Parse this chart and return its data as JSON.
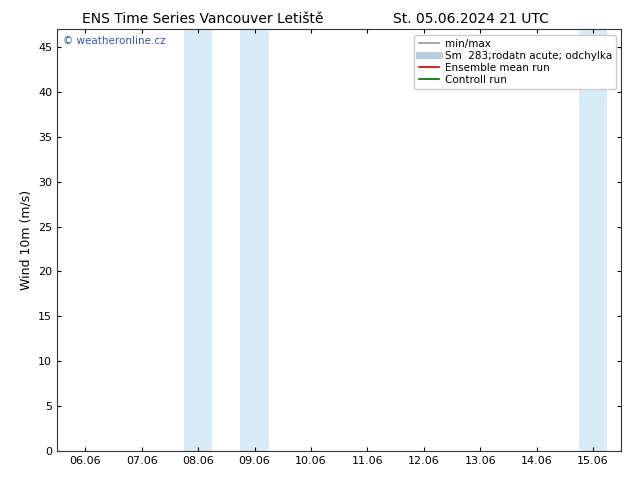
{
  "title_left": "ENS Time Series Vancouver Letiště",
  "title_right": "St. 05.06.2024 21 UTC",
  "ylabel": "Wind 10m (m/s)",
  "ylim": [
    0,
    47
  ],
  "yticks": [
    0,
    5,
    10,
    15,
    20,
    25,
    30,
    35,
    40,
    45
  ],
  "xtick_labels": [
    "06.06",
    "07.06",
    "08.06",
    "09.06",
    "10.06",
    "11.06",
    "12.06",
    "13.06",
    "14.06",
    "15.06"
  ],
  "xtick_positions": [
    0,
    1,
    2,
    3,
    4,
    5,
    6,
    7,
    8,
    9
  ],
  "xlim": [
    -0.5,
    9.5
  ],
  "shaded_bands": [
    {
      "x_start": 2.0,
      "x_end": 2.5,
      "color": "#ddeeff"
    },
    {
      "x_start": 2.5,
      "x_end": 4.0,
      "color": "#ddeeff"
    },
    {
      "x_start": 9.0,
      "x_end": 9.5,
      "color": "#ddeeff"
    }
  ],
  "background_color": "#ffffff",
  "plot_bg_color": "#ffffff",
  "watermark_text": "© weatheronline.cz",
  "watermark_color": "#3355bb",
  "legend_entries": [
    {
      "label": "min/max",
      "color": "#999999",
      "lw": 1.2
    },
    {
      "label": "Sm  283;rodatn acute; odchylka",
      "color": "#bbccdd",
      "lw": 5
    },
    {
      "label": "Ensemble mean run",
      "color": "#cc0000",
      "lw": 1.2
    },
    {
      "label": "Controll run",
      "color": "#006600",
      "lw": 1.2
    }
  ],
  "title_fontsize": 10,
  "tick_fontsize": 8,
  "ylabel_fontsize": 9,
  "legend_fontsize": 7.5
}
